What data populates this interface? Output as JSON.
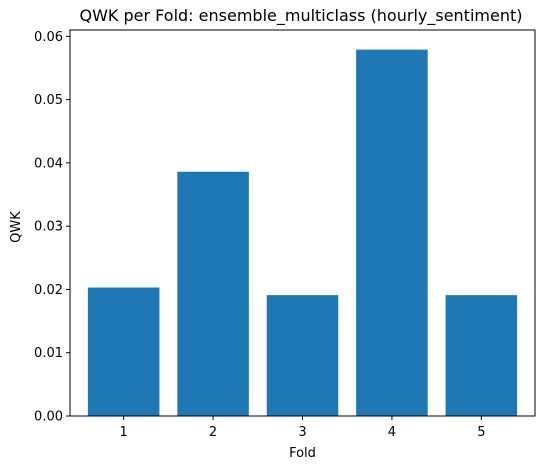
{
  "chart_data": {
    "type": "bar",
    "title": "QWK per Fold: ensemble_multiclass (hourly_sentiment)",
    "xlabel": "Fold",
    "ylabel": "QWK",
    "categories": [
      "1",
      "2",
      "3",
      "4",
      "5"
    ],
    "values": [
      0.0203,
      0.0386,
      0.0191,
      0.0579,
      0.0191
    ],
    "ylim": [
      0,
      0.061
    ],
    "yticks": [
      0.0,
      0.01,
      0.02,
      0.03,
      0.04,
      0.05,
      0.06
    ],
    "ytick_labels": [
      "0.00",
      "0.01",
      "0.02",
      "0.03",
      "0.04",
      "0.05",
      "0.06"
    ],
    "grid": false,
    "legend": "none",
    "bar_color": "#1f77b4"
  }
}
